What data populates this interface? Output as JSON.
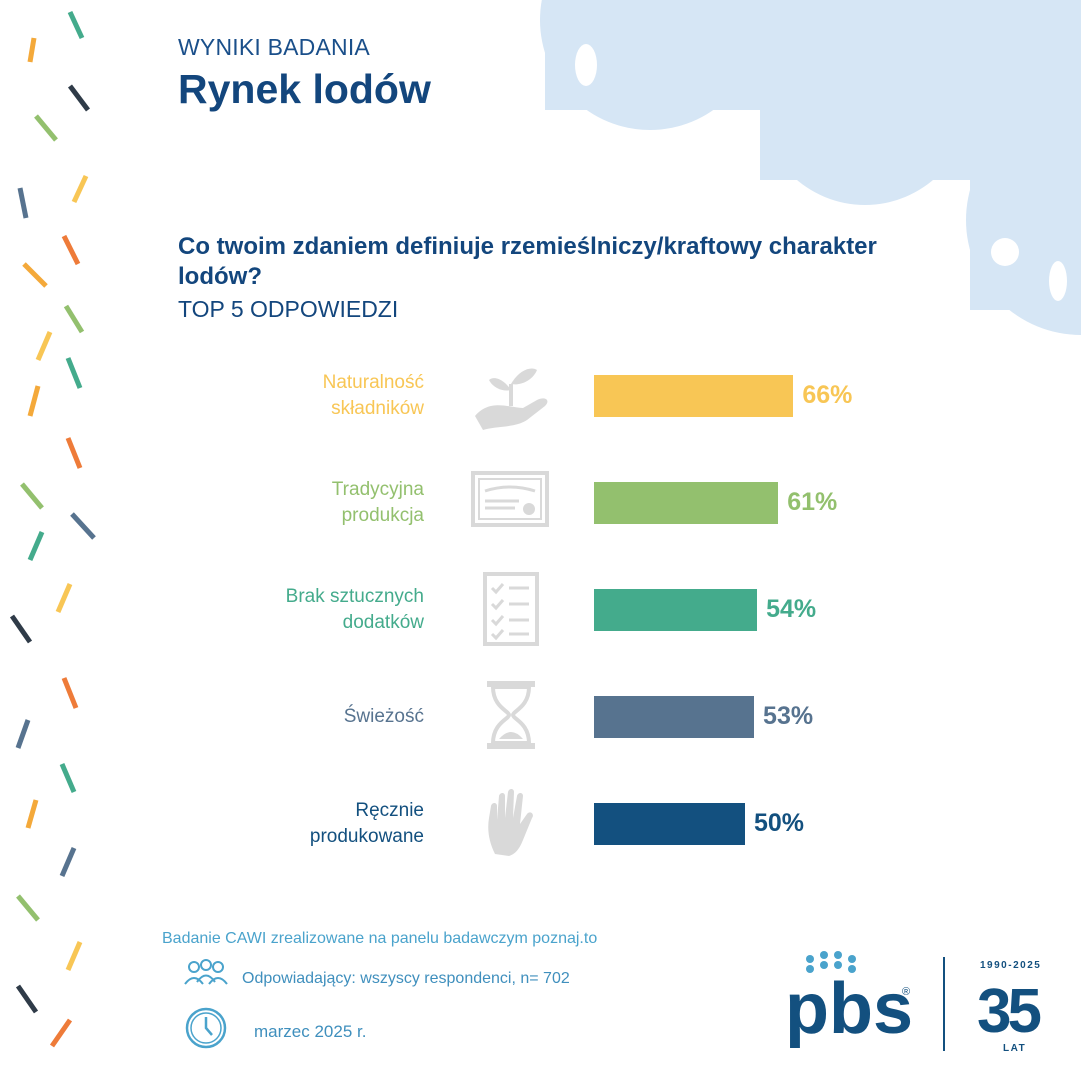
{
  "header": {
    "eyebrow": "WYNIKI BADANIA",
    "title": "Rynek lodów"
  },
  "question": {
    "text": "Co twoim zdaniem definiuje rzemieślniczy/kraftowy charakter lodów?",
    "subtitle": "TOP 5 ODPOWIEDZI"
  },
  "chart_data": {
    "type": "bar",
    "orientation": "horizontal",
    "categories": [
      "Naturalność składników",
      "Tradycyjna produkcja",
      "Brak sztucznych dodatków",
      "Świeżość",
      "Ręcznie produkowane"
    ],
    "category_lines": [
      [
        "Naturalność",
        "składników"
      ],
      [
        "Tradycyjna",
        "produkcja"
      ],
      [
        "Brak sztucznych",
        "dodatków"
      ],
      [
        "Świeżość"
      ],
      [
        "Ręcznie",
        "produkowane"
      ]
    ],
    "values": [
      66,
      61,
      54,
      53,
      50
    ],
    "value_labels": [
      "66%",
      "61%",
      "54%",
      "53%",
      "50%"
    ],
    "colors": [
      "#f8c655",
      "#93c06e",
      "#44ab8c",
      "#57738f",
      "#13507f"
    ],
    "icons": [
      "plant-in-hand-icon",
      "certificate-icon",
      "checklist-icon",
      "hourglass-icon",
      "hand-icon"
    ],
    "unit": "%"
  },
  "footer": {
    "survey_note": "Badanie CAWI zrealizowane na panelu badawczym poznaj.to",
    "respondents": "Odpowiadający: wszyscy respondenci, n= 702",
    "date": "marzec 2025 r."
  },
  "logo": {
    "brand": "pbs",
    "registered": "®",
    "years": "1990-2025",
    "anniversary": "35",
    "anniversary_unit": "LAT"
  },
  "colors": {
    "navy": "#13467d",
    "cloud": "#d6e6f5",
    "footer_blue": "#3f8fbd"
  }
}
